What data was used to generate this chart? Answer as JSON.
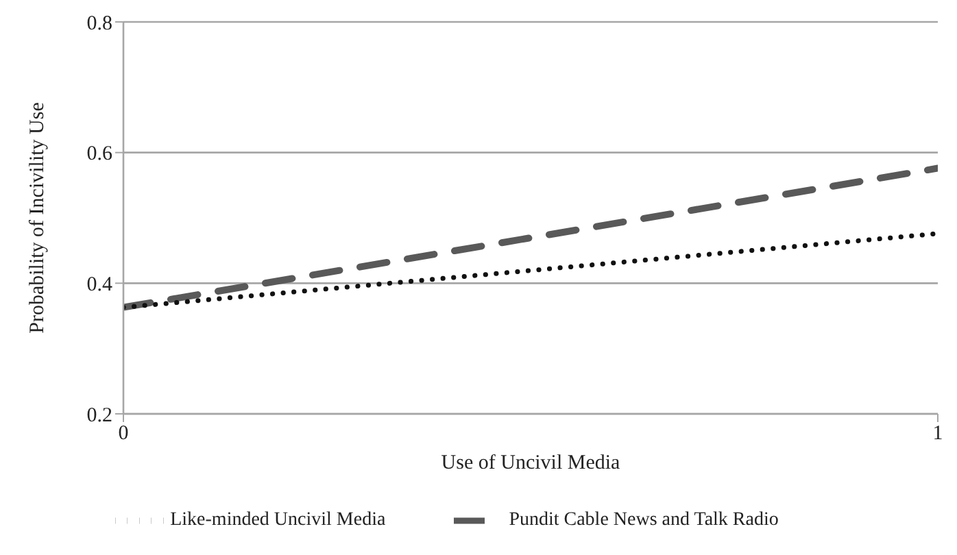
{
  "chart_data": {
    "type": "line",
    "xlabel": "Use of Uncivil Media",
    "ylabel": "Probability of  Incivility Use",
    "x": [
      0,
      1
    ],
    "xlim": [
      0,
      1
    ],
    "xticks": [
      0,
      1
    ],
    "ylim": [
      0.2,
      0.8
    ],
    "yticks": [
      0.2,
      0.4,
      0.6,
      0.8
    ],
    "grid": "y",
    "legend": "bottom",
    "marker": "none",
    "series": [
      {
        "name": "Pundit Cable News and Talk Radio",
        "color": "#595959",
        "values": [
          0.363,
          0.576
        ],
        "line_style": "dashed"
      },
      {
        "name": "Like-minded Uncivil Media",
        "color": "#111111",
        "values": [
          0.363,
          0.476
        ],
        "line_style": "dotted"
      }
    ]
  }
}
